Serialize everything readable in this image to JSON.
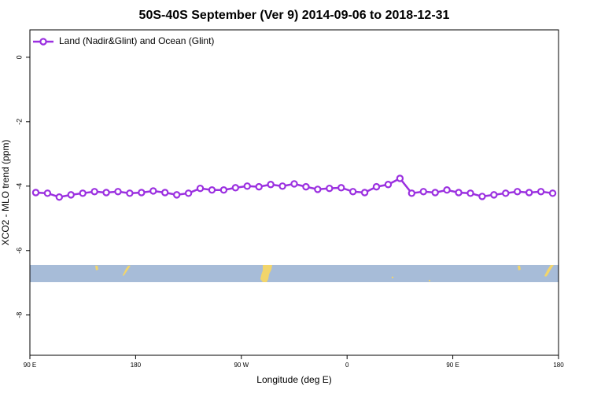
{
  "chart_data": {
    "type": "line",
    "title": "50S-40S September (Ver 9)   2014-09-06 to 2018-12-31",
    "xlabel": "Longitude (deg E)",
    "ylabel": "XCO2 - MLO trend (ppm)",
    "x": [
      95,
      105,
      115,
      125,
      135,
      145,
      155,
      165,
      175,
      185,
      195,
      205,
      215,
      225,
      235,
      245,
      255,
      265,
      275,
      285,
      295,
      305,
      315,
      325,
      335,
      345,
      355,
      365,
      375,
      385,
      395,
      405,
      415,
      425,
      435,
      445,
      455,
      465,
      475,
      485,
      495,
      505,
      515,
      525,
      535
    ],
    "series": [
      {
        "name": "Land (Nadir&Glint) and Ocean (Glint)",
        "color": "#9b30e0",
        "values": [
          -4.2,
          -4.22,
          -4.34,
          -4.27,
          -4.22,
          -4.17,
          -4.2,
          -4.17,
          -4.22,
          -4.2,
          -4.15,
          -4.2,
          -4.27,
          -4.22,
          -4.07,
          -4.12,
          -4.12,
          -4.05,
          -4.0,
          -4.02,
          -3.95,
          -4.0,
          -3.93,
          -4.02,
          -4.1,
          -4.07,
          -4.05,
          -4.17,
          -4.2,
          -4.02,
          -3.95,
          -3.76,
          -4.22,
          -4.17,
          -4.2,
          -4.12,
          -4.2,
          -4.22,
          -4.32,
          -4.27,
          -4.22,
          -4.17,
          -4.2,
          -4.17,
          -4.22
        ]
      }
    ],
    "xlim": [
      90,
      540
    ],
    "xticks": [
      {
        "value": 90,
        "label": "90 E"
      },
      {
        "value": 180,
        "label": "180"
      },
      {
        "value": 270,
        "label": "90 W"
      },
      {
        "value": 360,
        "label": "0"
      },
      {
        "value": 450,
        "label": "90 E"
      },
      {
        "value": 540,
        "label": "180"
      }
    ],
    "ylim": [
      -9.25,
      0.85
    ],
    "yticks": [
      0,
      -2,
      -4,
      -6,
      -8
    ],
    "legend": "top-left"
  }
}
